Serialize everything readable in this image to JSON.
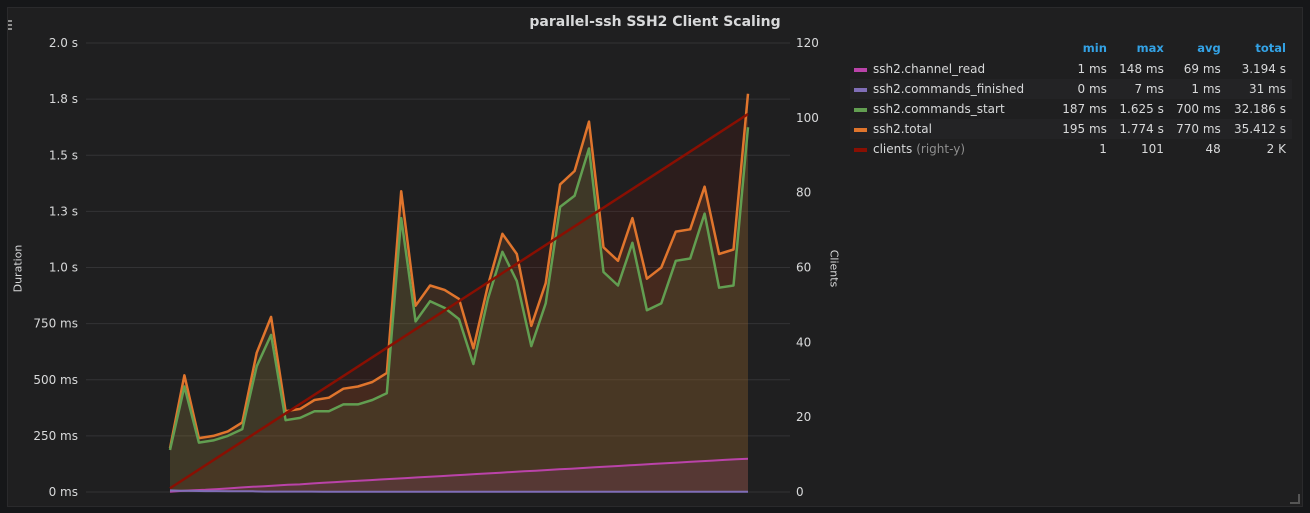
{
  "panel": {
    "title": "parallel-ssh SSH2 Client Scaling"
  },
  "chart_data": {
    "type": "line",
    "title": "parallel-ssh SSH2 Client Scaling",
    "ylabel": "Duration",
    "y2label": "Clients",
    "ylim_seconds": [
      0,
      2.0
    ],
    "y2lim": [
      0,
      120
    ],
    "y_ticks": [
      "0 ms",
      "250 ms",
      "500 ms",
      "750 ms",
      "1.0 s",
      "1.3 s",
      "1.5 s",
      "1.8 s",
      "2.0 s"
    ],
    "y2_ticks": [
      "0",
      "20",
      "40",
      "60",
      "80",
      "100",
      "120"
    ],
    "grid": true,
    "legend_position": "right",
    "series": [
      {
        "name": "ssh2.channel_read",
        "color": "#ba43a9",
        "axis": "left",
        "values": [
          0.001,
          0.005,
          0.008,
          0.01,
          0.013,
          0.016,
          0.02,
          0.023,
          0.026,
          0.029,
          0.032,
          0.034,
          0.038,
          0.041,
          0.044,
          0.047,
          0.05,
          0.053,
          0.056,
          0.059,
          0.062,
          0.065,
          0.068,
          0.071,
          0.074,
          0.077,
          0.08,
          0.083,
          0.086,
          0.089,
          0.092,
          0.095,
          0.098,
          0.101,
          0.104,
          0.107,
          0.11,
          0.113,
          0.116,
          0.119,
          0.122,
          0.125,
          0.128,
          0.131,
          0.134,
          0.137,
          0.14,
          0.143,
          0.146,
          0.148
        ]
      },
      {
        "name": "ssh2.commands_finished",
        "color": "#806eb7",
        "axis": "left",
        "values": [
          0.007,
          0.006,
          0.005,
          0.004,
          0.004,
          0.003,
          0.003,
          0.003,
          0.002,
          0.002,
          0.002,
          0.002,
          0.002,
          0.001,
          0.001,
          0.001,
          0.001,
          0.001,
          0.001,
          0.001,
          0.001,
          0.001,
          0.001,
          0.001,
          0.001,
          0.001,
          0.001,
          0.001,
          0.001,
          0.001,
          0.001,
          0.001,
          0.001,
          0.001,
          0.001,
          0.001,
          0.001,
          0.001,
          0.001,
          0.001,
          0.001,
          0.001,
          0.001,
          0.001,
          0.001,
          0.001,
          0.001,
          0.001,
          0.001,
          0.001
        ]
      },
      {
        "name": "ssh2.commands_start",
        "color": "#629e51",
        "axis": "left",
        "values": [
          0.187,
          0.47,
          0.22,
          0.23,
          0.25,
          0.28,
          0.56,
          0.7,
          0.32,
          0.33,
          0.36,
          0.36,
          0.39,
          0.39,
          0.41,
          0.44,
          1.22,
          0.76,
          0.85,
          0.82,
          0.77,
          0.57,
          0.86,
          1.07,
          0.94,
          0.65,
          0.84,
          1.27,
          1.32,
          1.53,
          0.98,
          0.92,
          1.11,
          0.81,
          0.84,
          1.03,
          1.04,
          1.24,
          0.91,
          0.92,
          1.625
        ]
      },
      {
        "name": "ssh2.total",
        "color": "#e0752d",
        "axis": "left",
        "values": [
          0.195,
          0.52,
          0.24,
          0.25,
          0.27,
          0.31,
          0.62,
          0.78,
          0.36,
          0.37,
          0.41,
          0.42,
          0.46,
          0.47,
          0.49,
          0.53,
          1.34,
          0.83,
          0.92,
          0.9,
          0.86,
          0.64,
          0.92,
          1.15,
          1.06,
          0.74,
          0.93,
          1.37,
          1.43,
          1.65,
          1.09,
          1.03,
          1.22,
          0.95,
          1.0,
          1.16,
          1.17,
          1.36,
          1.06,
          1.08,
          1.774
        ]
      },
      {
        "name": "clients",
        "suffix": "(right-y)",
        "color": "#890f02",
        "axis": "right",
        "values_start_end": [
          1,
          101
        ]
      }
    ]
  },
  "legend": {
    "headers": [
      "min",
      "max",
      "avg",
      "total"
    ],
    "rows": [
      {
        "name": "ssh2.channel_read",
        "suffix": "",
        "color": "#ba43a9",
        "min": "1 ms",
        "max": "148 ms",
        "avg": "69 ms",
        "total": "3.194 s"
      },
      {
        "name": "ssh2.commands_finished",
        "suffix": "",
        "color": "#806eb7",
        "min": "0 ms",
        "max": "7 ms",
        "avg": "1 ms",
        "total": "31 ms"
      },
      {
        "name": "ssh2.commands_start",
        "suffix": "",
        "color": "#629e51",
        "min": "187 ms",
        "max": "1.625 s",
        "avg": "700 ms",
        "total": "32.186 s"
      },
      {
        "name": "ssh2.total",
        "suffix": "",
        "color": "#e0752d",
        "min": "195 ms",
        "max": "1.774 s",
        "avg": "770 ms",
        "total": "35.412 s"
      },
      {
        "name": "clients",
        "suffix": "(right-y)",
        "color": "#890f02",
        "min": "1",
        "max": "101",
        "avg": "48",
        "total": "2 K"
      }
    ]
  }
}
